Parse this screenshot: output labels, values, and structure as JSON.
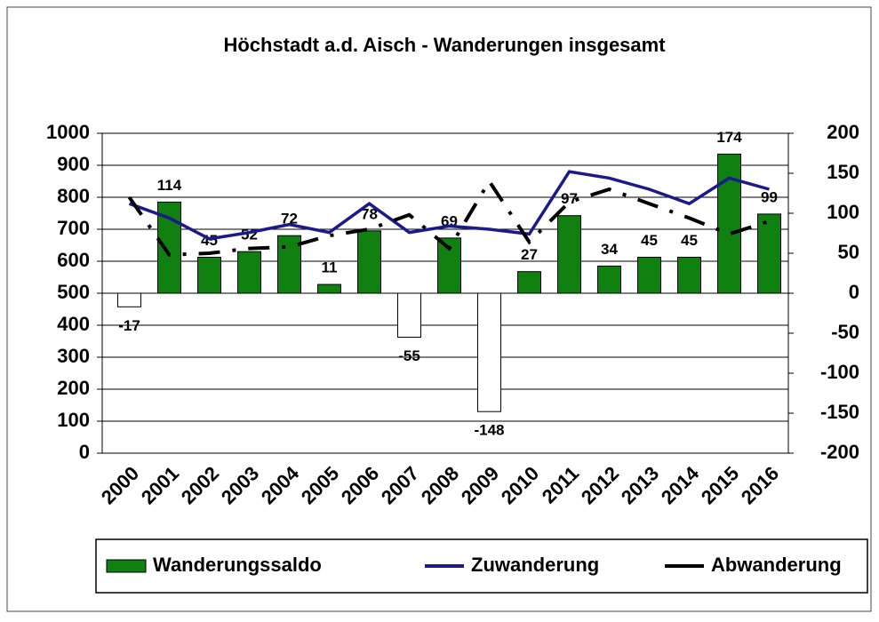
{
  "chart_data": {
    "type": "bar",
    "title": "Höchstadt a.d. Aisch - Wanderungen insgesamt",
    "categories": [
      "2000",
      "2001",
      "2002",
      "2003",
      "2004",
      "2005",
      "2006",
      "2007",
      "2008",
      "2009",
      "2010",
      "2011",
      "2012",
      "2013",
      "2014",
      "2015",
      "2016"
    ],
    "series": [
      {
        "name": "Wanderungssaldo",
        "type": "bar",
        "axis": "y2",
        "color": "#108010",
        "negative_color": "#ffffff",
        "values": [
          -17,
          114,
          45,
          52,
          72,
          11,
          78,
          -55,
          69,
          -148,
          27,
          97,
          34,
          45,
          45,
          174,
          99
        ]
      },
      {
        "name": "Zuwanderung",
        "type": "line",
        "color": "#1a1a8c",
        "values": [
          780,
          735,
          670,
          690,
          715,
          690,
          780,
          690,
          710,
          700,
          685,
          880,
          860,
          825,
          780,
          860,
          825
        ]
      },
      {
        "name": "Abwanderung",
        "type": "line",
        "dashed": true,
        "color": "#000000",
        "values": [
          800,
          620,
          625,
          640,
          645,
          680,
          700,
          745,
          640,
          850,
          660,
          785,
          825,
          780,
          735,
          685,
          725
        ]
      }
    ],
    "ylim": [
      0,
      1000
    ],
    "yticks": [
      0,
      100,
      200,
      300,
      400,
      500,
      600,
      700,
      800,
      900,
      1000
    ],
    "y2lim": [
      -200,
      200
    ],
    "y2ticks": [
      -200,
      -150,
      -100,
      -50,
      0,
      50,
      100,
      150,
      200
    ],
    "grid": true,
    "legend": "bottom"
  }
}
